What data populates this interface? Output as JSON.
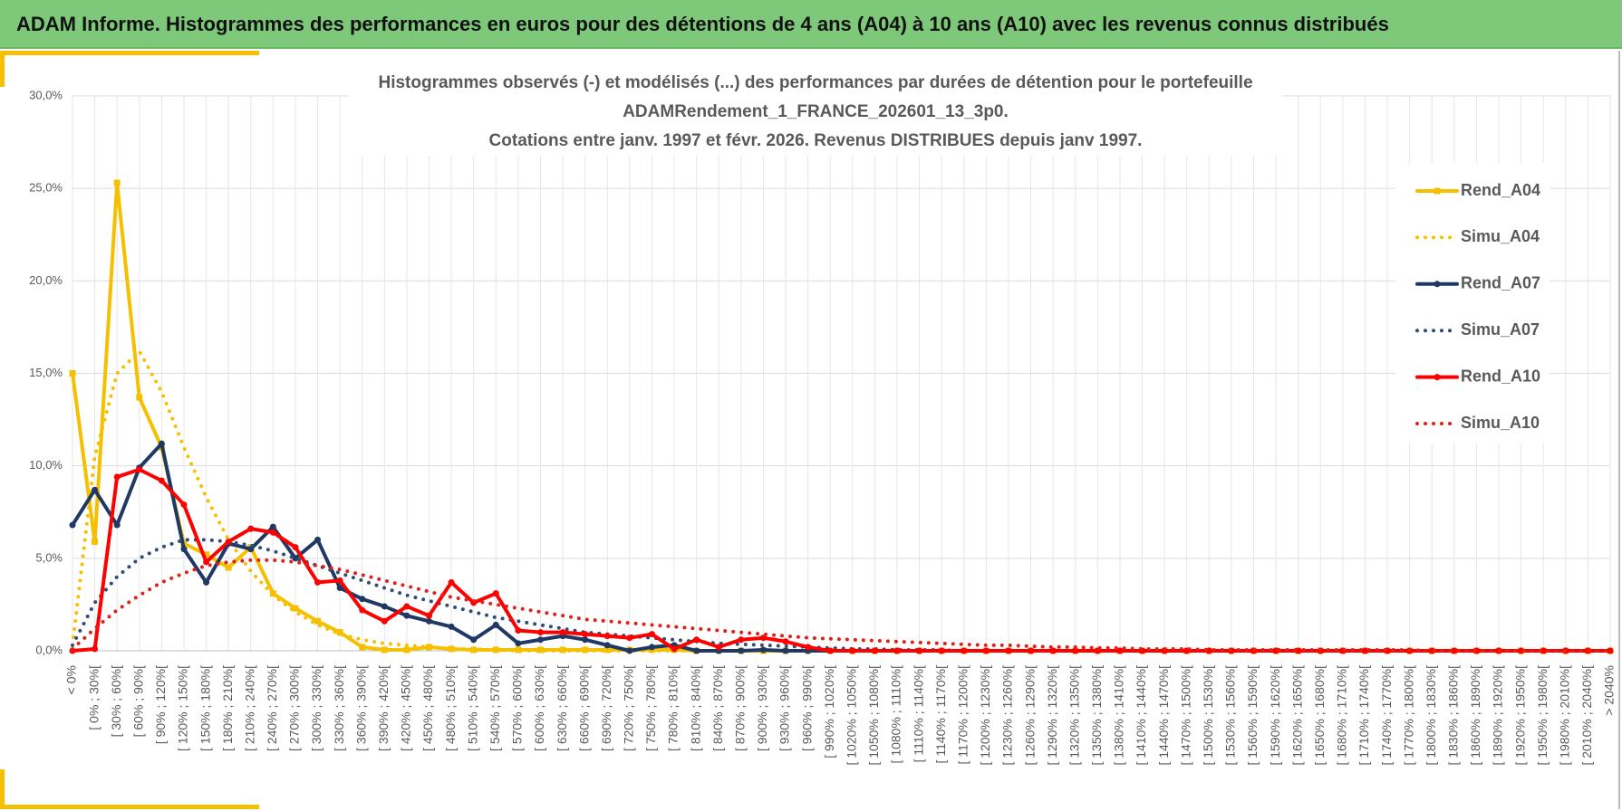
{
  "header": {
    "title": "ADAM Informe. Histogrammes des performances en euros pour des détentions de 4 ans (A04) à 10 ans (A10) avec les revenus connus distribués"
  },
  "chart_data": {
    "type": "line",
    "title": [
      "Histogrammes observés (-) et modélisés (...) des performances par durées de détention pour le portefeuille",
      "ADAMRendement_1_FRANCE_202601_13_3p0.",
      "Cotations entre janv. 1997 et févr. 2026. Revenus DISTRIBUES depuis janv 1997."
    ],
    "categories": [
      "< 0%",
      "[ 0% ; 30%[",
      "[ 30% ; 60%[",
      "[ 60% ; 90%[",
      "[ 90% ; 120%[",
      "[ 120% ; 150%[",
      "[ 150% ; 180%[",
      "[ 180% ; 210%[",
      "[ 210% ; 240%[",
      "[ 240% ; 270%[",
      "[ 270% ; 300%[",
      "[ 300% ; 330%[",
      "[ 330% ; 360%[",
      "[ 360% ; 390%[",
      "[ 390% ; 420%[",
      "[ 420% ; 450%[",
      "[ 450% ; 480%[",
      "[ 480% ; 510%[",
      "[ 510% ; 540%[",
      "[ 540% ; 570%[",
      "[ 570% ; 600%[",
      "[ 600% ; 630%[",
      "[ 630% ; 660%[",
      "[ 660% ; 690%[",
      "[ 690% ; 720%[",
      "[ 720% ; 750%[",
      "[ 750% ; 780%[",
      "[ 780% ; 810%[",
      "[ 810% ; 840%[",
      "[ 840% ; 870%[",
      "[ 870% ; 900%[",
      "[ 900% ; 930%[",
      "[ 930% ; 960%[",
      "[ 960% ; 990%[",
      "[ 990% ; 1020%[",
      "[ 1020% ; 1050%[",
      "[ 1050% ; 1080%[",
      "[ 1080% ; 1110%[",
      "[ 1110% ; 1140%[",
      "[ 1140% ; 1170%[",
      "[ 1170% ; 1200%[",
      "[ 1200% ; 1230%[",
      "[ 1230% ; 1260%[",
      "[ 1260% ; 1290%[",
      "[ 1290% ; 1320%[",
      "[ 1320% ; 1350%[",
      "[ 1350% ; 1380%[",
      "[ 1380% ; 1410%[",
      "[ 1410% ; 1440%[",
      "[ 1440% ; 1470%[",
      "[ 1470% ; 1500%[",
      "[ 1500% ; 1530%[",
      "[ 1530% ; 1560%[",
      "[ 1560% ; 1590%[",
      "[ 1590% ; 1620%[",
      "[ 1620% ; 1650%[",
      "[ 1650% ; 1680%[",
      "[ 1680% ; 1710%[",
      "[ 1710% ; 1740%[",
      "[ 1740% ; 1770%[",
      "[ 1770% ; 1800%[",
      "[ 1800% ; 1830%[",
      "[ 1830% ; 1860%[",
      "[ 1860% ; 1890%[",
      "[ 1890% ; 1920%[",
      "[ 1920% ; 1950%[",
      "[ 1950% ; 1980%[",
      "[ 1980% ; 2010%[",
      "[ 2010% ; 2040%[",
      "> 2040%"
    ],
    "series": [
      {
        "name": "Rend_A04",
        "color": "#f5c000",
        "style": "solid",
        "marker": "square",
        "values": [
          15.0,
          5.9,
          25.3,
          13.7,
          11.0,
          5.8,
          5.2,
          4.5,
          5.6,
          3.1,
          2.3,
          1.6,
          1.0,
          0.2,
          0.05,
          0.05,
          0.2,
          0.1,
          0.05,
          0.05,
          0.05,
          0.05,
          0.05,
          0.05,
          0.05,
          0.05,
          0.05,
          0.05,
          0,
          0,
          0,
          0,
          0,
          0,
          0,
          0,
          0,
          0,
          0,
          0,
          0,
          0,
          0,
          0,
          0,
          0,
          0,
          0,
          0,
          0,
          0,
          0,
          0,
          0,
          0,
          0,
          0,
          0,
          0,
          0,
          0,
          0,
          0,
          0,
          0,
          0,
          0,
          0,
          0,
          0
        ]
      },
      {
        "name": "Simu_A04",
        "color": "#f5c000",
        "style": "dotted",
        "values": [
          0.3,
          10.5,
          15.0,
          16.2,
          14.0,
          11.0,
          8.3,
          6.0,
          4.3,
          3.0,
          2.1,
          1.4,
          0.9,
          0.6,
          0.4,
          0.3,
          0.2,
          0.1,
          0.1,
          0.05,
          0,
          0,
          0,
          0,
          0,
          0,
          0,
          0,
          0,
          0,
          0,
          0,
          0,
          0,
          0,
          0,
          0,
          0,
          0,
          0,
          0,
          0,
          0,
          0,
          0,
          0,
          0,
          0,
          0,
          0,
          0,
          0,
          0,
          0,
          0,
          0,
          0,
          0,
          0,
          0,
          0,
          0,
          0,
          0,
          0,
          0,
          0,
          0,
          0,
          0
        ]
      },
      {
        "name": "Rend_A07",
        "color": "#1f3864",
        "style": "solid",
        "marker": "circle",
        "values": [
          6.8,
          8.7,
          6.8,
          9.9,
          11.2,
          5.5,
          3.7,
          5.8,
          5.5,
          6.7,
          5.0,
          6.0,
          3.4,
          2.8,
          2.4,
          1.9,
          1.6,
          1.3,
          0.6,
          1.4,
          0.4,
          0.6,
          0.8,
          0.6,
          0.3,
          0.0,
          0.2,
          0.3,
          0,
          0,
          0,
          0.05,
          0,
          0,
          0,
          0,
          0,
          0,
          0,
          0,
          0,
          0,
          0,
          0,
          0,
          0,
          0,
          0,
          0,
          0,
          0,
          0,
          0,
          0,
          0,
          0,
          0,
          0,
          0,
          0,
          0,
          0,
          0,
          0,
          0,
          0,
          0,
          0,
          0,
          0
        ]
      },
      {
        "name": "Simu_A07",
        "color": "#2e4d7a",
        "style": "dotted",
        "values": [
          0.3,
          2.6,
          4.0,
          5.0,
          5.6,
          6.0,
          6.0,
          5.9,
          5.7,
          5.4,
          5.0,
          4.6,
          4.2,
          3.8,
          3.4,
          3.0,
          2.7,
          2.4,
          2.1,
          1.8,
          1.6,
          1.4,
          1.2,
          1.0,
          0.9,
          0.8,
          0.7,
          0.6,
          0.5,
          0.4,
          0.35,
          0.3,
          0.25,
          0.2,
          0.15,
          0.1,
          0.1,
          0.05,
          0.05,
          0.05,
          0,
          0,
          0,
          0,
          0,
          0,
          0,
          0,
          0,
          0,
          0,
          0,
          0,
          0,
          0,
          0,
          0,
          0,
          0,
          0,
          0,
          0,
          0,
          0,
          0,
          0,
          0,
          0,
          0,
          0
        ]
      },
      {
        "name": "Rend_A10",
        "color": "#ff0000",
        "style": "solid",
        "marker": "circle",
        "values": [
          0.0,
          0.1,
          9.4,
          9.8,
          9.2,
          7.9,
          4.8,
          5.9,
          6.6,
          6.4,
          5.6,
          3.7,
          3.8,
          2.2,
          1.6,
          2.4,
          1.9,
          3.7,
          2.6,
          3.1,
          1.1,
          1.0,
          1.0,
          0.9,
          0.8,
          0.7,
          0.9,
          0.1,
          0.6,
          0.2,
          0.6,
          0.7,
          0.5,
          0.2,
          0.0,
          0,
          0,
          0,
          0,
          0,
          0,
          0,
          0,
          0,
          0,
          0,
          0,
          0,
          0,
          0,
          0,
          0,
          0,
          0,
          0,
          0,
          0,
          0,
          0,
          0,
          0,
          0,
          0,
          0,
          0,
          0,
          0,
          0,
          0,
          0
        ]
      },
      {
        "name": "Simu_A10",
        "color": "#e0201a",
        "style": "dotted",
        "values": [
          0.1,
          1.2,
          2.2,
          3.0,
          3.7,
          4.2,
          4.6,
          4.8,
          4.9,
          4.9,
          4.8,
          4.6,
          4.4,
          4.1,
          3.8,
          3.5,
          3.2,
          2.9,
          2.7,
          2.5,
          2.3,
          2.1,
          1.9,
          1.7,
          1.6,
          1.5,
          1.4,
          1.3,
          1.2,
          1.1,
          1.0,
          0.9,
          0.8,
          0.7,
          0.65,
          0.6,
          0.55,
          0.5,
          0.45,
          0.4,
          0.35,
          0.3,
          0.3,
          0.25,
          0.2,
          0.2,
          0.15,
          0.15,
          0.1,
          0.1,
          0.1,
          0.05,
          0.05,
          0.05,
          0.05,
          0.05,
          0.05,
          0.05,
          0.05,
          0.05,
          0.05,
          0,
          0,
          0,
          0,
          0,
          0,
          0,
          0,
          0
        ]
      }
    ],
    "ylim": [
      0,
      30
    ],
    "yticks": [
      {
        "value": 0,
        "label": "0,0%"
      },
      {
        "value": 5,
        "label": "5,0%"
      },
      {
        "value": 10,
        "label": "10,0%"
      },
      {
        "value": 15,
        "label": "15,0%"
      },
      {
        "value": 20,
        "label": "20,0%"
      },
      {
        "value": 25,
        "label": "25,0%"
      },
      {
        "value": 30,
        "label": "30,0%"
      }
    ],
    "grid": true,
    "legend": "right"
  }
}
